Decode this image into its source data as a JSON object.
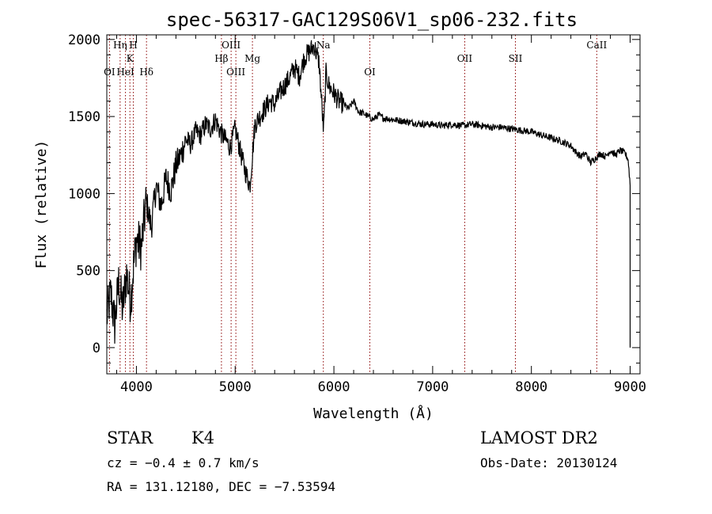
{
  "chart_data": {
    "type": "line",
    "title": "spec-56317-GAC129S06V1_sp06-232.fits",
    "xlabel": "Wavelength (Å)",
    "ylabel": "Flux (relative)",
    "xlim": [
      3700,
      9100
    ],
    "ylim": [
      -170,
      2030
    ],
    "xticks": [
      4000,
      5000,
      6000,
      7000,
      8000,
      9000
    ],
    "yticks": [
      0,
      500,
      1000,
      1500,
      2000
    ],
    "grid": false,
    "color": "#000000",
    "line_marker_color": "#8b0000",
    "series": [
      {
        "x": [
          3700,
          3740,
          3780,
          3820,
          3860,
          3900,
          3940,
          3970,
          4000,
          4050,
          4100,
          4150,
          4200,
          4250,
          4300,
          4350,
          4400,
          4450,
          4500,
          4550,
          4600,
          4650,
          4700,
          4750,
          4800,
          4850,
          4900,
          4950,
          5000,
          5050,
          5100,
          5150,
          5200,
          5250,
          5300,
          5350,
          5400,
          5450,
          5500,
          5550,
          5600,
          5650,
          5700,
          5750,
          5800,
          5850,
          5895,
          5920,
          5950,
          6000,
          6050,
          6100,
          6150,
          6200,
          6250,
          6300,
          6350,
          6400,
          6450,
          6500,
          6600,
          6700,
          6800,
          6900,
          7000,
          7100,
          7200,
          7300,
          7400,
          7500,
          7600,
          7700,
          7800,
          7900,
          8000,
          8100,
          8200,
          8300,
          8400,
          8450,
          8500,
          8550,
          8600,
          8650,
          8700,
          8750,
          8800,
          8850,
          8900,
          8950,
          8980,
          9000
        ],
        "y": [
          200,
          350,
          150,
          420,
          250,
          480,
          300,
          520,
          700,
          650,
          950,
          780,
          1050,
          920,
          1100,
          1020,
          1180,
          1250,
          1350,
          1320,
          1400,
          1380,
          1450,
          1420,
          1480,
          1400,
          1350,
          1300,
          1420,
          1280,
          1150,
          1050,
          1450,
          1500,
          1550,
          1600,
          1580,
          1650,
          1700,
          1750,
          1820,
          1760,
          1880,
          1920,
          1960,
          1850,
          1400,
          1780,
          1700,
          1650,
          1600,
          1580,
          1550,
          1600,
          1530,
          1520,
          1500,
          1480,
          1510,
          1490,
          1480,
          1470,
          1460,
          1450,
          1450,
          1440,
          1450,
          1440,
          1450,
          1440,
          1430,
          1430,
          1420,
          1410,
          1400,
          1380,
          1360,
          1340,
          1310,
          1270,
          1240,
          1260,
          1200,
          1230,
          1260,
          1240,
          1280,
          1250,
          1280,
          1260,
          1220,
          1060
        ]
      }
    ],
    "spectral_lines": [
      {
        "name": "OI",
        "x": 3727,
        "row": 3
      },
      {
        "name": "Hη",
        "x": 3835,
        "row": 1
      },
      {
        "name": "HeI",
        "x": 3889,
        "row": 3
      },
      {
        "name": "K",
        "x": 3934,
        "row": 2
      },
      {
        "name": "H",
        "x": 3969,
        "row": 1
      },
      {
        "name": "Hδ",
        "x": 4102,
        "row": 3
      },
      {
        "name": "Hβ",
        "x": 4861,
        "row": 2
      },
      {
        "name": "OIII",
        "x": 4959,
        "row": 1
      },
      {
        "name": "OIII",
        "x": 5007,
        "row": 3
      },
      {
        "name": "Mg",
        "x": 5175,
        "row": 2
      },
      {
        "name": "Na",
        "x": 5893,
        "row": 1
      },
      {
        "name": "OI",
        "x": 6364,
        "row": 3
      },
      {
        "name": "OII",
        "x": 7325,
        "row": 2
      },
      {
        "name": "SII",
        "x": 7838,
        "row": 2
      },
      {
        "name": "CaII",
        "x": 8662,
        "row": 1
      }
    ]
  },
  "info": {
    "class_label": "STAR",
    "subclass": "K4",
    "survey": "LAMOST DR2",
    "cz": "cz = −0.4 ± 0.7 km/s",
    "obs_date": "Obs-Date: 20130124",
    "coords": "RA = 131.12180, DEC =  −7.53594"
  }
}
